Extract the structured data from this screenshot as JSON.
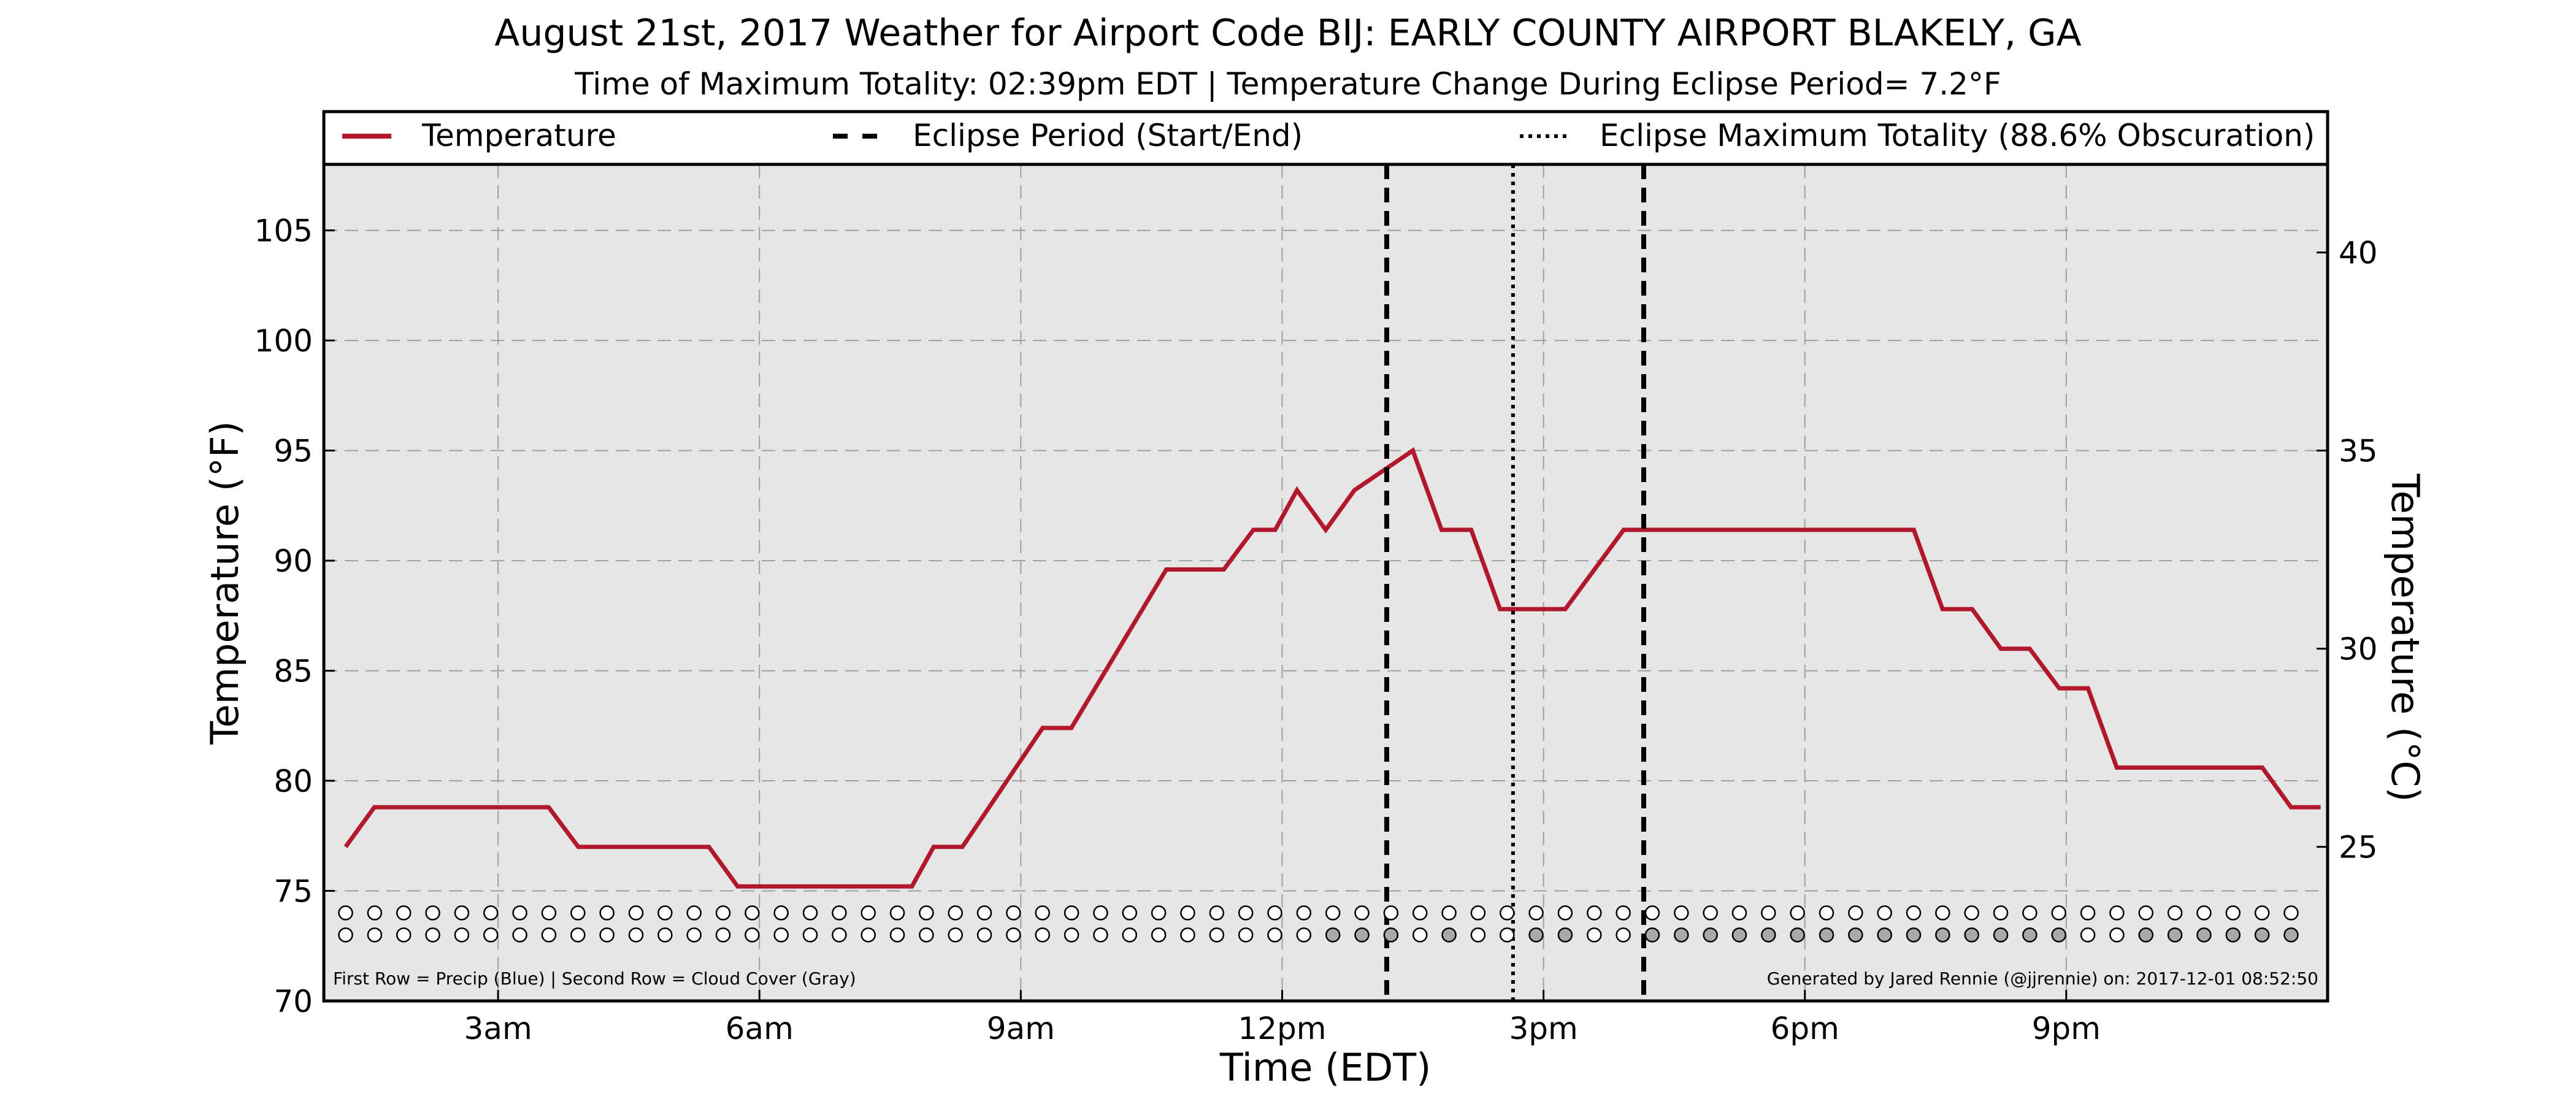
{
  "chart_data": {
    "type": "line",
    "title": "August 21st, 2017 Weather for Airport Code BIJ: EARLY COUNTY AIRPORT BLAKELY, GA",
    "subtitle": "Time of Maximum Totality: 02:39pm EDT | Temperature Change During Eclipse Period= 7.2$^\\circ$F",
    "subtitle_display": "Time of Maximum Totality: 02:39pm EDT | Temperature Change During Eclipse Period= 7.2°F",
    "xlabel": "Time (EDT)",
    "ylabel_left": "Temperature ($^\\circ$F)",
    "ylabel_left_display": "Temperature (°F)",
    "ylabel_right": "Temperature ($^\\circ$C)",
    "ylabel_right_display": "Temperature (°C)",
    "xlim": [
      1.0,
      24.0
    ],
    "ylim": [
      70,
      108
    ],
    "y_ticks": [
      70,
      75,
      80,
      85,
      90,
      95,
      100,
      105
    ],
    "y_ticks_right": [
      25,
      30,
      35,
      40
    ],
    "x_ticks": [
      3,
      6,
      9,
      12,
      15,
      18,
      21
    ],
    "x_tick_labels": [
      "3am",
      "6am",
      "9am",
      "12pm",
      "3pm",
      "6pm",
      "9pm"
    ],
    "grid": true,
    "legend": {
      "placement": "top",
      "entries": [
        {
          "label": "Temperature",
          "style": "solid",
          "color": "#b2182b"
        },
        {
          "label": "Eclipse Period (Start/End)",
          "style": "dashed",
          "color": "#000000"
        },
        {
          "label": "Eclipse Maximum Totality (88.6% Obscuration)",
          "style": "dotted",
          "color": "#000000"
        }
      ]
    },
    "series": [
      {
        "name": "Temperature",
        "color": "#b2182b",
        "x": [
          1.25,
          1.58,
          2.58,
          3.58,
          3.92,
          4.58,
          5.42,
          5.75,
          6.58,
          7.42,
          7.75,
          8.0,
          8.33,
          9.25,
          9.58,
          10.67,
          11.0,
          11.33,
          11.67,
          11.92,
          12.17,
          12.5,
          12.83,
          13.5,
          13.83,
          14.17,
          14.5,
          14.83,
          15.25,
          15.92,
          16.25,
          17.25,
          18.25,
          19.25,
          19.58,
          19.92,
          20.25,
          20.58,
          20.92,
          21.25,
          21.58,
          22.25,
          22.92,
          23.25,
          23.58,
          23.92
        ],
        "y": [
          77,
          78.8,
          78.8,
          78.8,
          77,
          77,
          77,
          75.2,
          75.2,
          75.2,
          75.2,
          77,
          77,
          82.4,
          82.4,
          89.6,
          89.6,
          89.6,
          91.4,
          91.4,
          93.2,
          91.4,
          93.2,
          95,
          91.4,
          91.4,
          87.8,
          87.8,
          87.8,
          91.4,
          91.4,
          91.4,
          91.4,
          91.4,
          87.8,
          87.8,
          86,
          86,
          84.2,
          84.2,
          80.6,
          80.6,
          80.6,
          80.6,
          78.8,
          78.8
        ]
      }
    ],
    "eclipse_start": 13.2,
    "eclipse_max": 14.65,
    "eclipse_end": 16.15,
    "markers": {
      "precip_row_y": 74,
      "cloud_row_y": 73,
      "x_start": 1.25,
      "x_step": 0.3333,
      "count": 68,
      "cloud_gray_indices": [
        34,
        35,
        36,
        38,
        41,
        42,
        45,
        46,
        47,
        48,
        49,
        50,
        51,
        52,
        53,
        54,
        55,
        56,
        57,
        58,
        59,
        62,
        63,
        64,
        65,
        66,
        67
      ],
      "precip_color": "#1f77b4",
      "cloud_color": "#a9a9a9"
    },
    "footnote_left": "First Row = Precip (Blue) | Second Row = Cloud Cover (Gray)",
    "footnote_right": "Generated by Jared Rennie (@jjrennie) on: 2017-12-01 08:52:50"
  }
}
